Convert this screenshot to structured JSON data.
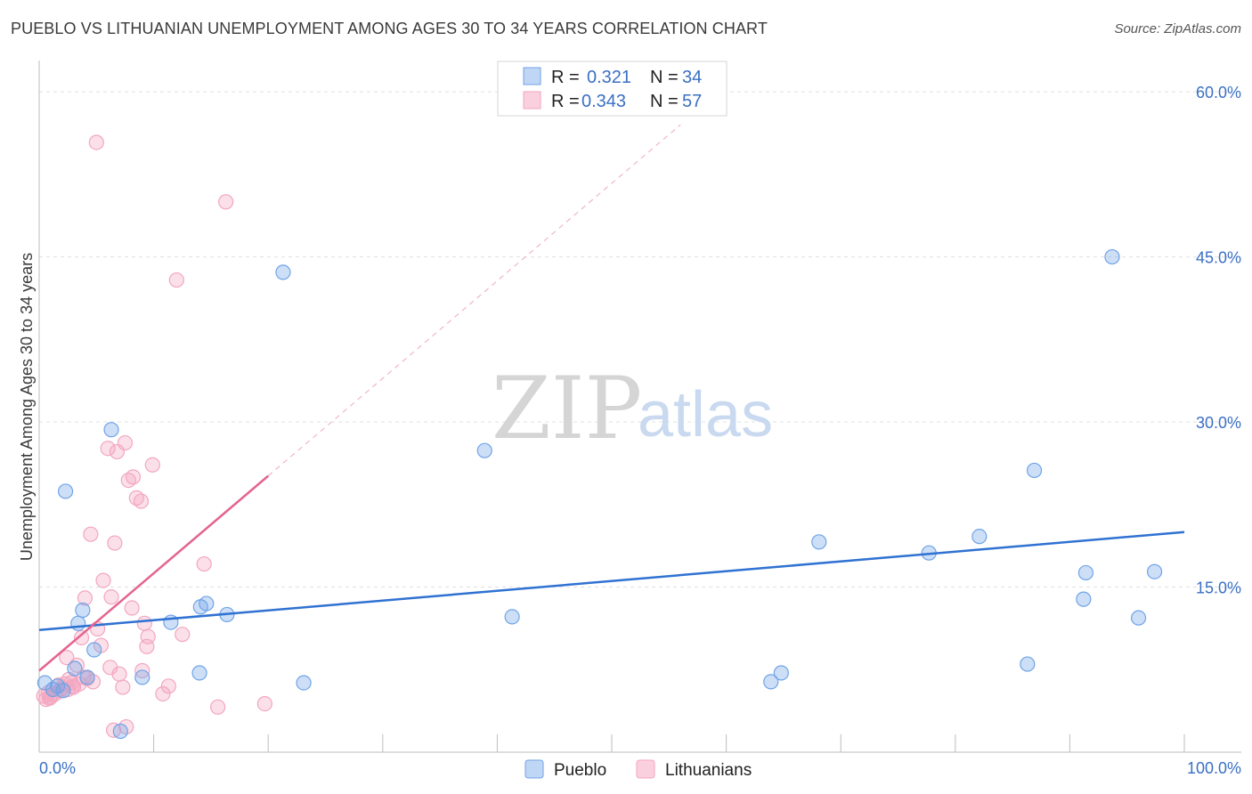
{
  "title": "PUEBLO VS LITHUANIAN UNEMPLOYMENT AMONG AGES 30 TO 34 YEARS CORRELATION CHART",
  "source": "Source: ZipAtlas.com",
  "watermark": {
    "zip": "ZIP",
    "atlas": "atlas"
  },
  "colors": {
    "pueblo": "#6fa3e8",
    "lithuanians": "#f3a6bf",
    "pueblo_line": "#2f72d2",
    "lithuanians_line": "#e4648f"
  },
  "legend": {
    "rows": [
      {
        "r_label": "R =",
        "r_value": "0.321",
        "n_label": "N =",
        "n_value": "34"
      },
      {
        "r_label": "R =",
        "r_value": "0.343",
        "n_label": "N =",
        "n_value": "57"
      }
    ]
  },
  "bottom_legend": [
    "Pueblo",
    "Lithuanians"
  ],
  "chart_data": {
    "type": "scatter",
    "title": "PUEBLO VS LITHUANIAN UNEMPLOYMENT AMONG AGES 30 TO 34 YEARS CORRELATION CHART",
    "xlabel": "",
    "ylabel": "Unemployment Among Ages 30 to 34 years",
    "xlim": [
      0,
      100
    ],
    "ylim": [
      0,
      63
    ],
    "x_tick_labels": [
      "0.0%",
      "100.0%"
    ],
    "y_ticks": [
      15,
      30,
      45,
      60
    ],
    "y_tick_labels": [
      "15.0%",
      "30.0%",
      "45.0%",
      "60.0%"
    ],
    "series": [
      {
        "name": "Pueblo",
        "points": [
          [
            0.5,
            6.3
          ],
          [
            1.2,
            5.7
          ],
          [
            1.6,
            6.0
          ],
          [
            2.1,
            5.6
          ],
          [
            2.3,
            23.7
          ],
          [
            3.4,
            11.7
          ],
          [
            3.8,
            12.9
          ],
          [
            3.1,
            7.6
          ],
          [
            4.2,
            6.8
          ],
          [
            4.8,
            9.3
          ],
          [
            6.3,
            29.3
          ],
          [
            7.1,
            1.9
          ],
          [
            9.0,
            6.8
          ],
          [
            11.5,
            11.8
          ],
          [
            14.0,
            7.2
          ],
          [
            14.1,
            13.2
          ],
          [
            14.6,
            13.5
          ],
          [
            16.4,
            12.5
          ],
          [
            21.3,
            43.6
          ],
          [
            23.1,
            6.3
          ],
          [
            38.9,
            27.4
          ],
          [
            41.3,
            12.3
          ],
          [
            63.9,
            6.4
          ],
          [
            64.8,
            7.2
          ],
          [
            68.1,
            19.1
          ],
          [
            77.7,
            18.1
          ],
          [
            82.1,
            19.6
          ],
          [
            86.3,
            8.0
          ],
          [
            86.9,
            25.6
          ],
          [
            91.2,
            13.9
          ],
          [
            91.4,
            16.3
          ],
          [
            93.7,
            45.0
          ],
          [
            96.0,
            12.2
          ],
          [
            97.4,
            16.4
          ]
        ],
        "trend": {
          "x0": 0,
          "y0": 11.1,
          "x1": 100,
          "y1": 20.0
        }
      },
      {
        "name": "Lithuanians",
        "points": [
          [
            0.4,
            5.1
          ],
          [
            0.6,
            4.8
          ],
          [
            0.8,
            5.4
          ],
          [
            1.0,
            5.0
          ],
          [
            1.4,
            5.3
          ],
          [
            1.7,
            6.1
          ],
          [
            2.0,
            5.8
          ],
          [
            2.2,
            6.2
          ],
          [
            2.4,
            8.6
          ],
          [
            2.6,
            6.6
          ],
          [
            2.8,
            6.3
          ],
          [
            3.0,
            5.9
          ],
          [
            3.3,
            7.9
          ],
          [
            3.5,
            6.2
          ],
          [
            3.7,
            10.4
          ],
          [
            4.0,
            14.0
          ],
          [
            4.2,
            6.7
          ],
          [
            4.5,
            19.8
          ],
          [
            4.7,
            6.4
          ],
          [
            5.1,
            11.2
          ],
          [
            5.4,
            9.7
          ],
          [
            5.6,
            15.6
          ],
          [
            6.0,
            27.6
          ],
          [
            6.2,
            7.7
          ],
          [
            6.3,
            14.1
          ],
          [
            6.6,
            19.0
          ],
          [
            6.8,
            27.3
          ],
          [
            7.0,
            7.1
          ],
          [
            7.3,
            5.9
          ],
          [
            7.5,
            28.1
          ],
          [
            7.8,
            24.7
          ],
          [
            8.1,
            13.1
          ],
          [
            8.2,
            25.0
          ],
          [
            8.5,
            23.1
          ],
          [
            8.9,
            22.8
          ],
          [
            9.0,
            7.4
          ],
          [
            9.2,
            11.7
          ],
          [
            9.4,
            9.6
          ],
          [
            9.5,
            10.5
          ],
          [
            9.9,
            26.1
          ],
          [
            10.8,
            5.3
          ],
          [
            11.3,
            6.0
          ],
          [
            12.0,
            42.9
          ],
          [
            12.5,
            10.7
          ],
          [
            14.4,
            17.1
          ],
          [
            15.6,
            4.1
          ],
          [
            16.3,
            50.0
          ],
          [
            19.7,
            4.4
          ],
          [
            5.0,
            55.4
          ],
          [
            7.6,
            2.3
          ],
          [
            6.5,
            2.0
          ],
          [
            0.9,
            4.9
          ],
          [
            1.1,
            5.2
          ],
          [
            2.9,
            6.0
          ],
          [
            1.8,
            5.6
          ],
          [
            2.5,
            5.7
          ],
          [
            3.9,
            6.8
          ]
        ],
        "trend": {
          "x0": 0,
          "y0": 7.4,
          "x1": 20,
          "y1": 25.1,
          "dash_x1": 56,
          "dash_y1": 57.0
        }
      }
    ]
  }
}
